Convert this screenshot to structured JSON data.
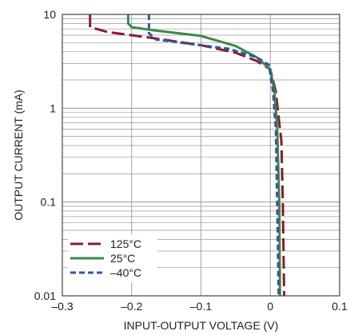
{
  "chart_data": {
    "type": "line",
    "title": "",
    "xlabel": "INPUT-OUTPUT VOLTAGE (V)",
    "ylabel": "OUTPUT CURRENT (mA)",
    "xlim": [
      -0.3,
      0.1
    ],
    "ylim": [
      0.01,
      10
    ],
    "y_scale": "log",
    "x_ticks": [
      -0.3,
      -0.2,
      -0.1,
      0,
      0.1
    ],
    "x_tick_labels": [
      "–0.3",
      "–0.2",
      "–0.1",
      "0",
      "0.1"
    ],
    "y_ticks": [
      0.01,
      0.1,
      1,
      10
    ],
    "y_tick_labels": [
      "0.01",
      "0.1",
      "1",
      "10"
    ],
    "grid": true,
    "legend_position": "bottom-left",
    "series": [
      {
        "name": "125°C",
        "color": "#8a1c2b",
        "style": "long-dash",
        "points": [
          [
            -0.26,
            10
          ],
          [
            -0.26,
            7.3
          ],
          [
            -0.235,
            6.5
          ],
          [
            -0.17,
            5.6
          ],
          [
            -0.1,
            4.7
          ],
          [
            -0.05,
            3.9
          ],
          [
            -0.02,
            3.2
          ],
          [
            0.0,
            2.6
          ],
          [
            0.008,
            1.5
          ],
          [
            0.012,
            0.8
          ],
          [
            0.016,
            0.45
          ],
          [
            0.018,
            0.1
          ],
          [
            0.02,
            0.01
          ]
        ]
      },
      {
        "name": "25°C",
        "color": "#3a8a4a",
        "style": "solid",
        "points": [
          [
            -0.205,
            10
          ],
          [
            -0.205,
            8.0
          ],
          [
            -0.2,
            7.3
          ],
          [
            -0.17,
            6.8
          ],
          [
            -0.1,
            5.9
          ],
          [
            -0.05,
            4.6
          ],
          [
            -0.02,
            3.5
          ],
          [
            0.0,
            2.6
          ],
          [
            0.006,
            1.5
          ],
          [
            0.01,
            0.6
          ],
          [
            0.013,
            0.1
          ],
          [
            0.014,
            0.01
          ]
        ]
      },
      {
        "name": "–40°C",
        "color": "#3456a0",
        "style": "short-dash",
        "points": [
          [
            -0.175,
            10
          ],
          [
            -0.175,
            6.3
          ],
          [
            -0.165,
            5.4
          ],
          [
            -0.12,
            4.9
          ],
          [
            -0.06,
            4.3
          ],
          [
            -0.02,
            3.5
          ],
          [
            -0.002,
            2.9
          ],
          [
            0.004,
            1.5
          ],
          [
            0.008,
            0.6
          ],
          [
            0.01,
            0.1
          ],
          [
            0.012,
            0.01
          ]
        ]
      }
    ]
  }
}
